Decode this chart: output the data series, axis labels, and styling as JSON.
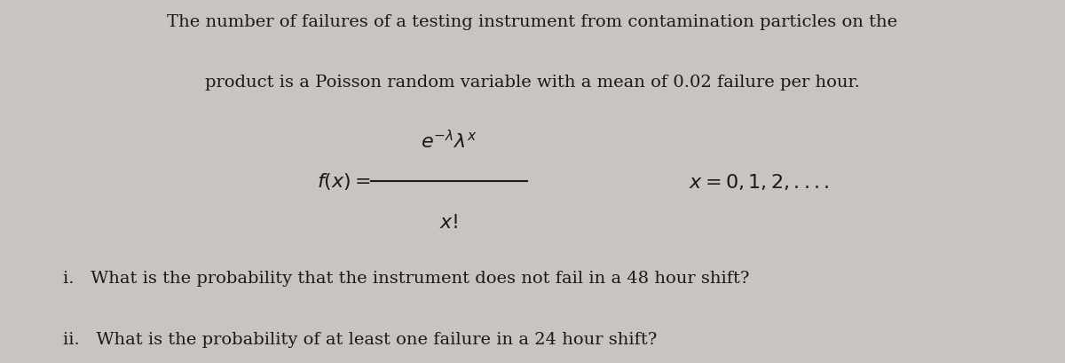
{
  "bg_color": "#c8c4bf",
  "text_color": "#1a1a1a",
  "line1": "The number of failures of a testing instrument from contamination particles on the",
  "line2": "product is a Poisson random variable with a mean of 0.02 failure per hour.",
  "question_i": "i.   What is the probability that the instrument does not fail in a 48 hour shift?",
  "question_ii": "ii.   What is the probability of at least one failure in a 24 hour shift?",
  "figsize": [
    12.0,
    4.1
  ],
  "dpi": 100
}
